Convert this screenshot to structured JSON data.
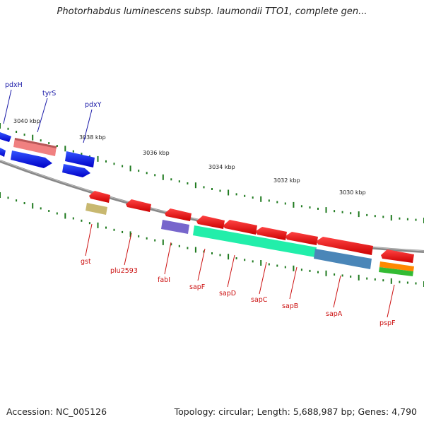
{
  "header": {
    "title": "Photorhabdus luminescens subsp. laumondii TTO1, complete gen..."
  },
  "footer": {
    "accession": "Accession: NC_005126",
    "stats": "Topology: circular; Length: 5,688,987 bp; Genes: 4,790"
  },
  "scale": {
    "labels": [
      "3040 kbp",
      "3038 kbp",
      "3036 kbp",
      "3034 kbp",
      "3032 kbp",
      "3030 kbp"
    ]
  },
  "genes_forward": [
    {
      "name": "pdxH",
      "color": "#0000ee"
    },
    {
      "name": "tyrS",
      "color": "#0000ee"
    },
    {
      "name": "pdxY",
      "color": "#0000ee"
    }
  ],
  "genes_reverse": [
    {
      "name": "gst",
      "color": "#dd1111"
    },
    {
      "name": "plu2593",
      "color": "#dd1111"
    },
    {
      "name": "fabI",
      "color": "#dd1111"
    },
    {
      "name": "sapF",
      "color": "#dd1111"
    },
    {
      "name": "sapD",
      "color": "#dd1111"
    },
    {
      "name": "sapC",
      "color": "#dd1111"
    },
    {
      "name": "sapB",
      "color": "#dd1111"
    },
    {
      "name": "sapA",
      "color": "#dd1111"
    },
    {
      "name": "pspF",
      "color": "#dd1111"
    }
  ],
  "feature_colors": {
    "forward_cds": "#0000ee",
    "reverse_cds": "#ee0000",
    "backbone": "#8a8a8a",
    "tick": "#1f7a1f",
    "rna_pink": "#f08080",
    "cog_tan": "#c8b870",
    "cog_violet": "#7766cc",
    "cog_teal": "#22eeaa",
    "cog_steelblue": "#4a86b8",
    "cog_orange": "#ff8800",
    "cog_green": "#33bb33"
  }
}
